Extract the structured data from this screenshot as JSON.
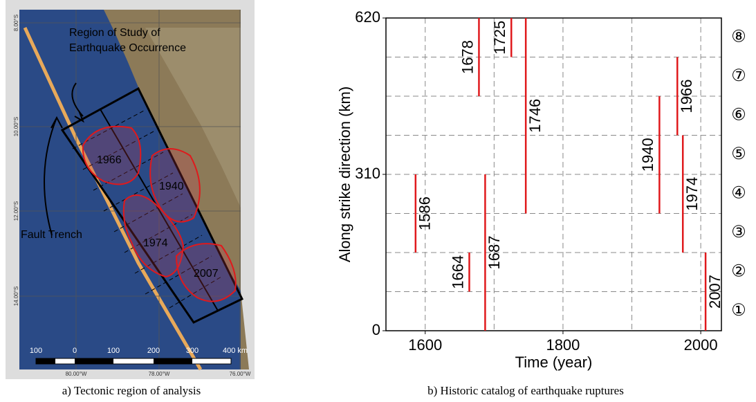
{
  "map": {
    "title_lines": [
      "Region of Study of",
      "Earthquake Occurrence"
    ],
    "trench_label": "Fault Trench",
    "zone_labels": [
      "1966",
      "1940",
      "1974",
      "2007"
    ],
    "lat_labels": [
      "8.00°S",
      "10.00°S",
      "12.00°S",
      "14.00°S"
    ],
    "lon_labels": [
      "80.00°W",
      "78.00°W",
      "76.00°W"
    ],
    "scale_labels": [
      "100",
      "0",
      "100",
      "200",
      "300",
      "400 km"
    ]
  },
  "chart_data": {
    "type": "segment",
    "xlabel": "Time (year)",
    "ylabel": "Along strike direction (km)",
    "color": "#e0191c",
    "xlim": [
      1543,
      2030
    ],
    "ylim": [
      0,
      620
    ],
    "xticks": [
      1600,
      1800,
      2000
    ],
    "yticks": [
      0,
      310,
      620
    ],
    "xgrid": [
      1600,
      1700,
      1800,
      1900,
      2000
    ],
    "ygrid": [
      77.5,
      155,
      232.5,
      310,
      387.5,
      465,
      542.5
    ],
    "segment_labels": [
      "①",
      "②",
      "③",
      "④",
      "⑤",
      "⑥",
      "⑦",
      "⑧"
    ],
    "ruptures": [
      {
        "year": 1586,
        "from": 155,
        "to": 310
      },
      {
        "year": 1664,
        "from": 77.5,
        "to": 155
      },
      {
        "year": 1678,
        "from": 465,
        "to": 620
      },
      {
        "year": 1687,
        "from": 0,
        "to": 310
      },
      {
        "year": 1725,
        "from": 542.5,
        "to": 620
      },
      {
        "year": 1746,
        "from": 232.5,
        "to": 620
      },
      {
        "year": 1940,
        "from": 232.5,
        "to": 465
      },
      {
        "year": 1966,
        "from": 387.5,
        "to": 542.5
      },
      {
        "year": 1974,
        "from": 155,
        "to": 387.5
      },
      {
        "year": 2007,
        "from": 0,
        "to": 155
      }
    ]
  },
  "captions": [
    "a) Tectonic region of analysis",
    "b) Historic catalog of earthquake ruptures"
  ]
}
